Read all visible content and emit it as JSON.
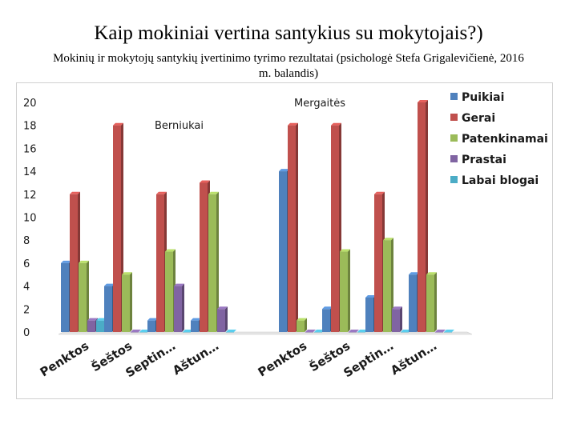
{
  "header": {
    "title": "Kaip mokiniai vertina santykius su mokytojais?)",
    "subtitle": "Mokinių ir mokytojų santykių įvertinimo tyrimo rezultatai (psichologė Stefa Grigalevičienė, 2016 m. balandis)"
  },
  "chart_data": {
    "type": "bar",
    "groups": [
      {
        "label": "Berniukai",
        "categories": [
          "Penktos",
          "Šeštos",
          "Septin…",
          "Aštun…"
        ]
      },
      {
        "label": "Mergaitės",
        "categories": [
          "Penktos",
          "Šeštos",
          "Septin…",
          "Aštun…"
        ]
      }
    ],
    "categories": [
      "Penktos",
      "Šeštos",
      "Septin…",
      "Aštun…",
      "Penktos",
      "Šeštos",
      "Septin…",
      "Aštun…"
    ],
    "series": [
      {
        "name": "Puikiai",
        "color": "#4f81bd",
        "values": [
          6,
          4,
          1,
          1,
          14,
          2,
          3,
          5
        ]
      },
      {
        "name": "Gerai",
        "color": "#c0504d",
        "values": [
          12,
          18,
          12,
          13,
          18,
          18,
          12,
          20
        ]
      },
      {
        "name": "Patenkinamai",
        "color": "#9bbb59",
        "values": [
          6,
          5,
          7,
          12,
          1,
          7,
          8,
          5
        ]
      },
      {
        "name": "Prastai",
        "color": "#8064a2",
        "values": [
          1,
          0,
          4,
          2,
          0,
          0,
          2,
          0
        ]
      },
      {
        "name": "Labai blogai",
        "color": "#4bacc6",
        "values": [
          1,
          0,
          0,
          0,
          0,
          0,
          0,
          0
        ]
      }
    ],
    "ylim": [
      0,
      20
    ],
    "yticks": [
      0,
      2,
      4,
      6,
      8,
      10,
      12,
      14,
      16,
      18,
      20
    ],
    "grid": false,
    "legend_position": "right"
  }
}
